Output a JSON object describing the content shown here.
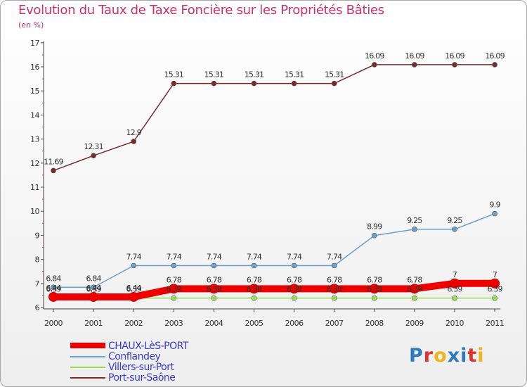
{
  "title": "Evolution du Taux de Taxe Foncière sur les Propriétés Bâties",
  "unit_label": "(en %)",
  "logo": {
    "text": "Proxiti",
    "letters": [
      "P",
      "r",
      "o",
      "x",
      "i",
      "t",
      "i"
    ],
    "colors": [
      "#2e7bc0",
      "#e0312c",
      "#f2b21c",
      "#2e7bc0",
      "#2e7bc0",
      "#e0312c",
      "#f2b21c"
    ]
  },
  "chart_data": {
    "type": "line",
    "title": "Evolution du Taux de Taxe Foncière sur les Propriétés Bâties",
    "ylabel": "(en %)",
    "xlabel": "",
    "x": [
      "2000",
      "2001",
      "2002",
      "2003",
      "2004",
      "2005",
      "2006",
      "2007",
      "2008",
      "2009",
      "2010",
      "2011"
    ],
    "ylim": [
      6,
      17
    ],
    "yticks": [
      "6",
      "7",
      "8",
      "9",
      "10",
      "11",
      "12",
      "13",
      "14",
      "15",
      "16",
      "17"
    ],
    "series": [
      {
        "name": "CHAUX-LèS-PORT",
        "color": "#ee0000",
        "values": [
          6.44,
          6.44,
          6.44,
          6.78,
          6.78,
          6.78,
          6.78,
          6.78,
          6.78,
          6.78,
          7,
          7
        ],
        "labels": [
          "6.44",
          "6.44",
          "6.44",
          "6.78",
          "6.78",
          "6.78",
          "6.78",
          "6.78",
          "6.78",
          "6.78",
          "7",
          "7"
        ]
      },
      {
        "name": "Conflandey",
        "color": "#6aa0cc",
        "values": [
          6.84,
          6.84,
          7.74,
          7.74,
          7.74,
          7.74,
          7.74,
          7.74,
          8.99,
          9.25,
          9.25,
          9.9
        ],
        "labels": [
          "6.84",
          "6.84",
          "7.74",
          "7.74",
          "7.74",
          "7.74",
          "7.74",
          "7.74",
          "8.99",
          "9.25",
          "9.25",
          "9.9"
        ]
      },
      {
        "name": "Villers-sur-Port",
        "color": "#99dd55",
        "values": [
          6.39,
          6.39,
          6.39,
          6.39,
          6.39,
          6.39,
          6.39,
          6.39,
          6.39,
          6.39,
          6.39,
          6.39
        ],
        "labels": [
          "6.39",
          "6.39",
          "6.39",
          "6.39",
          "6.39",
          "6.39",
          "6.39",
          "6.39",
          "6.39",
          "6.39",
          "6.39",
          "6.39"
        ]
      },
      {
        "name": "Port-sur-Saône",
        "color": "#7a2a2a",
        "values": [
          11.69,
          12.31,
          12.9,
          15.31,
          15.31,
          15.31,
          15.31,
          15.31,
          16.09,
          16.09,
          16.09,
          16.09
        ],
        "labels": [
          "11.69",
          "12.31",
          "12.9",
          "15.31",
          "15.31",
          "15.31",
          "15.31",
          "15.31",
          "16.09",
          "16.09",
          "16.09",
          "16.09"
        ]
      }
    ],
    "grid": false,
    "legend_position": "bottom-left"
  }
}
